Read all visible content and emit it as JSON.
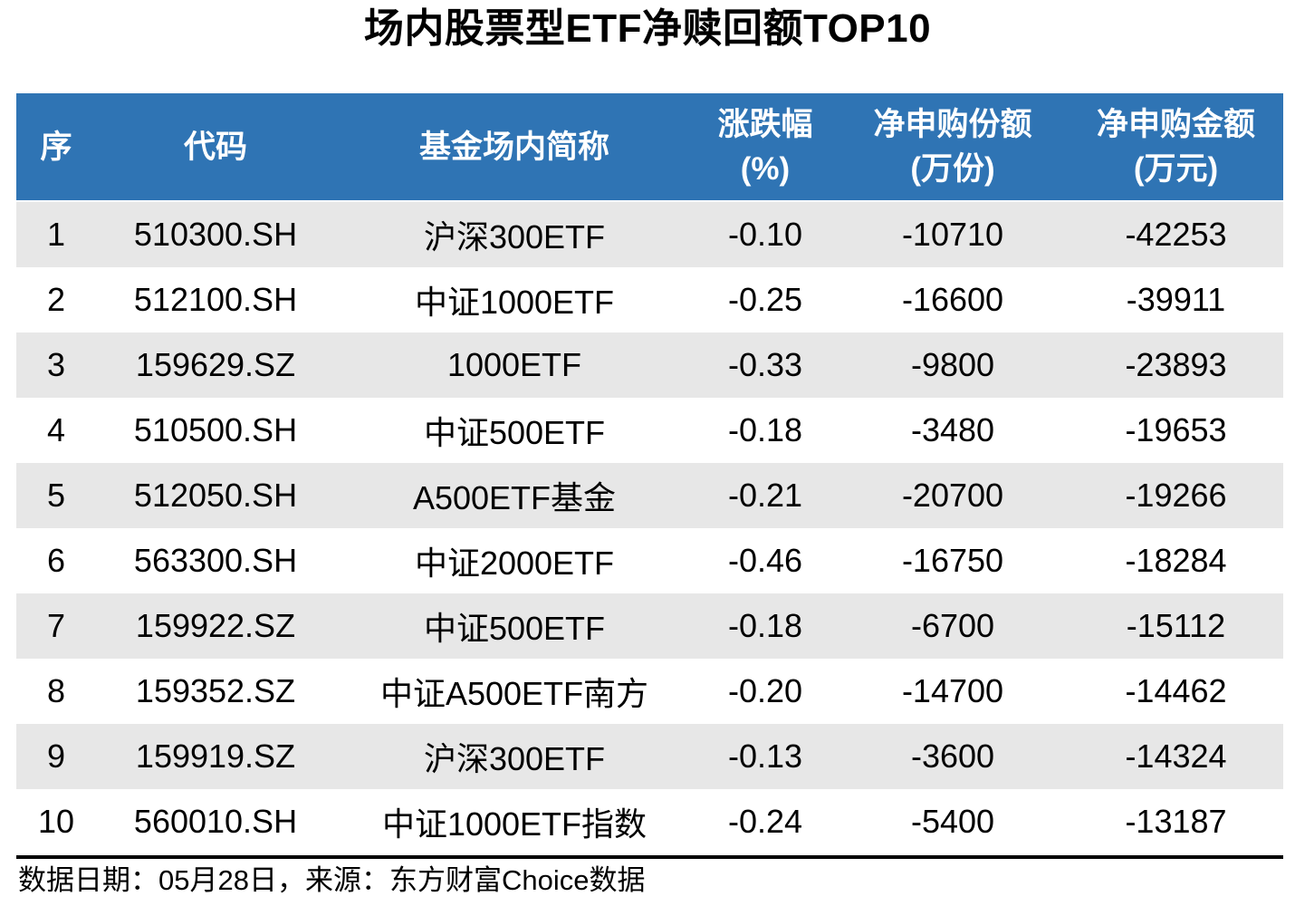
{
  "title": "场内股票型ETF净赎回额TOP10",
  "colors": {
    "header_bg": "#2f74b4",
    "row_alt_bg": "#e7e7e7",
    "header_text": "#ffffff",
    "body_text": "#000000"
  },
  "table": {
    "columns": [
      {
        "key": "rank",
        "lines": [
          "序"
        ]
      },
      {
        "key": "code",
        "lines": [
          "代码"
        ]
      },
      {
        "key": "name",
        "lines": [
          "基金场内简称"
        ]
      },
      {
        "key": "chg",
        "lines": [
          "涨跌幅",
          "(%)"
        ]
      },
      {
        "key": "shares",
        "lines": [
          "净申购份额",
          "(万份)"
        ]
      },
      {
        "key": "amount",
        "lines": [
          "净申购金额",
          "(万元)"
        ]
      }
    ],
    "rows": [
      [
        "1",
        "510300.SH",
        "沪深300ETF",
        "-0.10",
        "-10710",
        "-42253"
      ],
      [
        "2",
        "512100.SH",
        "中证1000ETF",
        "-0.25",
        "-16600",
        "-39911"
      ],
      [
        "3",
        "159629.SZ",
        "1000ETF",
        "-0.33",
        "-9800",
        "-23893"
      ],
      [
        "4",
        "510500.SH",
        "中证500ETF",
        "-0.18",
        "-3480",
        "-19653"
      ],
      [
        "5",
        "512050.SH",
        "A500ETF基金",
        "-0.21",
        "-20700",
        "-19266"
      ],
      [
        "6",
        "563300.SH",
        "中证2000ETF",
        "-0.46",
        "-16750",
        "-18284"
      ],
      [
        "7",
        "159922.SZ",
        "中证500ETF",
        "-0.18",
        "-6700",
        "-15112"
      ],
      [
        "8",
        "159352.SZ",
        "中证A500ETF南方",
        "-0.20",
        "-14700",
        "-14462"
      ],
      [
        "9",
        "159919.SZ",
        "沪深300ETF",
        "-0.13",
        "-3600",
        "-14324"
      ],
      [
        "10",
        "560010.SH",
        "中证1000ETF指数",
        "-0.24",
        "-5400",
        "-13187"
      ]
    ]
  },
  "footer": {
    "text": "数据日期：05月28日，来源：东方财富Choice数据"
  },
  "chart_data": {
    "type": "table",
    "title": "场内股票型ETF净赎回额TOP10",
    "columns": [
      "序",
      "代码",
      "基金场内简称",
      "涨跌幅(%)",
      "净申购份额(万份)",
      "净申购金额(万元)"
    ],
    "rows": [
      [
        1,
        "510300.SH",
        "沪深300ETF",
        -0.1,
        -10710,
        -42253
      ],
      [
        2,
        "512100.SH",
        "中证1000ETF",
        -0.25,
        -16600,
        -39911
      ],
      [
        3,
        "159629.SZ",
        "1000ETF",
        -0.33,
        -9800,
        -23893
      ],
      [
        4,
        "510500.SH",
        "中证500ETF",
        -0.18,
        -3480,
        -19653
      ],
      [
        5,
        "512050.SH",
        "A500ETF基金",
        -0.21,
        -20700,
        -19266
      ],
      [
        6,
        "563300.SH",
        "中证2000ETF",
        -0.46,
        -16750,
        -18284
      ],
      [
        7,
        "159922.SZ",
        "中证500ETF",
        -0.18,
        -6700,
        -15112
      ],
      [
        8,
        "159352.SZ",
        "中证A500ETF南方",
        -0.2,
        -14700,
        -14462
      ],
      [
        9,
        "159919.SZ",
        "沪深300ETF",
        -0.13,
        -3600,
        -14324
      ],
      [
        10,
        "560010.SH",
        "中证1000ETF指数",
        -0.24,
        -5400,
        -13187
      ]
    ],
    "source_note": "数据日期：05月28日，来源：东方财富Choice数据",
    "layout": {
      "zebra_striping": true,
      "header_style": "blue-bg-white-bold-text",
      "values_alignment": "center"
    }
  }
}
